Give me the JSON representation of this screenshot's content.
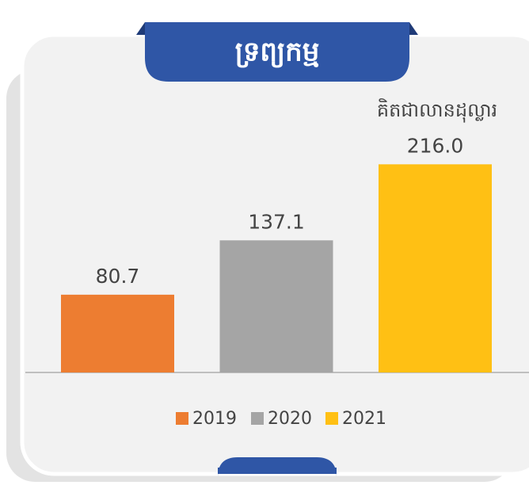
{
  "chart_data": {
    "type": "bar",
    "title": "ទ្រព្យកម្ម",
    "unit_label": "គិតជាលានដុល្លារ",
    "categories": [
      "2019",
      "2020",
      "2021"
    ],
    "values": [
      80.7,
      137.1,
      216.0
    ],
    "value_labels": [
      "80.7",
      "137.1",
      "216.0"
    ],
    "colors": [
      "#ed7d31",
      "#a5a5a5",
      "#ffc014"
    ],
    "ylim": [
      0,
      250
    ],
    "legend": "bottom"
  }
}
